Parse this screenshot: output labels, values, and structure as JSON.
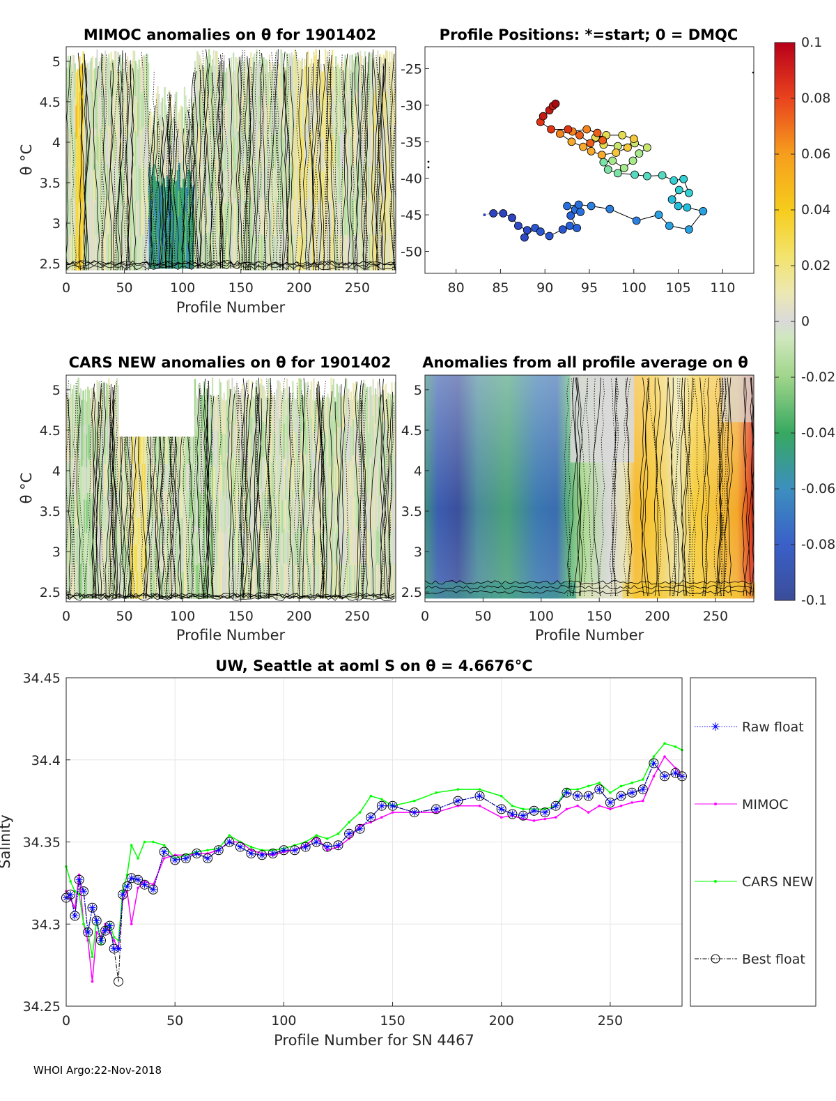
{
  "footer": "WHOI Argo:22-Nov-2018",
  "colorbar": {
    "ticks": [
      "0.1",
      "0.08",
      "0.06",
      "0.04",
      "0.02",
      "0",
      "-0.02",
      "-0.04",
      "-0.06",
      "-0.08",
      "-0.1"
    ],
    "range": [
      -0.1,
      0.1
    ]
  },
  "chart_data": [
    {
      "id": "mimoc_anom",
      "type": "heatmap",
      "title": "MIMOC anomalies on θ  for 1901402",
      "xlabel": "Profile Number",
      "ylabel": "θ °C",
      "xlim": [
        0,
        283
      ],
      "ylim": [
        2.38,
        5.18
      ],
      "xticks": [
        "0",
        "50",
        "100",
        "150",
        "200",
        "250"
      ],
      "yticks": [
        "5",
        "4.5",
        "4",
        "3.5",
        "3",
        "2.5"
      ],
      "value_range": [
        -0.1,
        0.1
      ]
    },
    {
      "id": "positions",
      "type": "scatter",
      "title": "Profile Positions: *=start; 0 = DMQC",
      "xlim": [
        76.5,
        113.5
      ],
      "ylim": [
        -53,
        -22
      ],
      "xticks": [
        "80",
        "85",
        "90",
        "95",
        "100",
        "105",
        "110"
      ],
      "yticks": [
        "-25",
        "-30",
        "-35",
        "-40",
        "-45",
        "-50"
      ],
      "track": [
        [
          83.2,
          -45
        ],
        [
          84.2,
          -44.8
        ],
        [
          85.3,
          -44.8
        ],
        [
          86.3,
          -45.4
        ],
        [
          87,
          -46.5
        ],
        [
          88,
          -47.1
        ],
        [
          87.7,
          -48.1
        ],
        [
          88.9,
          -46.8
        ],
        [
          89.5,
          -47.3
        ],
        [
          90.5,
          -47.9
        ],
        [
          92,
          -47
        ],
        [
          92.8,
          -46.5
        ],
        [
          93.6,
          -46.8
        ],
        [
          92.9,
          -45.1
        ],
        [
          93.4,
          -44.3
        ],
        [
          94,
          -44.6
        ],
        [
          92.5,
          -43.8
        ],
        [
          93.8,
          -43.6
        ],
        [
          95.2,
          -43.8
        ],
        [
          97.3,
          -44.2
        ],
        [
          100.3,
          -45.8
        ],
        [
          102.8,
          -45
        ],
        [
          104,
          -46.5
        ],
        [
          106.2,
          -47
        ],
        [
          107.8,
          -44.5
        ],
        [
          106,
          -44
        ],
        [
          105,
          -43.8
        ],
        [
          104.3,
          -42.9
        ],
        [
          105.1,
          -41.6
        ],
        [
          106.2,
          -42
        ],
        [
          105.6,
          -40.1
        ],
        [
          104.5,
          -40.3
        ],
        [
          103.2,
          -39.6
        ],
        [
          101.5,
          -39.7
        ],
        [
          100.1,
          -39.5
        ],
        [
          98.2,
          -39.3
        ],
        [
          97.1,
          -38.8
        ],
        [
          96.6,
          -37.8
        ],
        [
          97.6,
          -37.6
        ],
        [
          98.9,
          -38.6
        ],
        [
          99.9,
          -37.6
        ],
        [
          100.6,
          -36.6
        ],
        [
          101.5,
          -35.8
        ],
        [
          100.1,
          -35.2
        ],
        [
          98.2,
          -35.6
        ],
        [
          96.6,
          -35.4
        ],
        [
          95.7,
          -34.4
        ],
        [
          96.9,
          -34.1
        ],
        [
          98.7,
          -34.1
        ],
        [
          100,
          -34.6
        ],
        [
          99.3,
          -35.8
        ],
        [
          98,
          -36.5
        ],
        [
          96.4,
          -36.8
        ],
        [
          95.2,
          -36.3
        ],
        [
          94.3,
          -35.7
        ],
        [
          93,
          -35
        ],
        [
          91.7,
          -33.9
        ],
        [
          93.1,
          -33.6
        ],
        [
          94.7,
          -33.3
        ],
        [
          95.9,
          -33.8
        ],
        [
          96.5,
          -34.8
        ],
        [
          95.1,
          -35.2
        ],
        [
          93.9,
          -34.1
        ],
        [
          92.6,
          -33.3
        ],
        [
          90.7,
          -33.3
        ],
        [
          89.5,
          -32.3
        ],
        [
          89.8,
          -31.5
        ],
        [
          90.5,
          -30.7
        ],
        [
          90.9,
          -30.1
        ],
        [
          91.2,
          -29.8
        ]
      ],
      "colors": [
        "#2e43c0",
        "#2e4ac8",
        "#2a57d0",
        "#2862d8",
        "#2a70dc",
        "#2c80e0",
        "#2aa0e0",
        "#22bedc",
        "#33cfd2",
        "#55dac0",
        "#7be3a6",
        "#a7e88a",
        "#cae66f",
        "#e6dc52",
        "#f3c63d",
        "#f7a92b",
        "#f5841f",
        "#ee5d17",
        "#e03414",
        "#c31a14",
        "#a60b12"
      ]
    },
    {
      "id": "cars_anom",
      "type": "heatmap",
      "title": "CARS NEW anomalies on θ for 1901402",
      "xlabel": "Profile Number",
      "ylabel": "θ °C",
      "xlim": [
        0,
        283
      ],
      "ylim": [
        2.38,
        5.18
      ],
      "xticks": [
        "0",
        "50",
        "100",
        "150",
        "200",
        "250"
      ],
      "yticks": [
        "5",
        "4.5",
        "4",
        "3.5",
        "3",
        "2.5"
      ],
      "value_range": [
        -0.1,
        0.1
      ]
    },
    {
      "id": "avg_anom",
      "type": "heatmap",
      "title": "Anomalies from all profile average on θ",
      "xlabel": "Profile Number",
      "xlim": [
        0,
        283
      ],
      "ylim": [
        2.38,
        5.18
      ],
      "xticks": [
        "0",
        "50",
        "100",
        "150",
        "200",
        "250"
      ],
      "yticks": [
        "5",
        "4.5",
        "4",
        "3.5",
        "3",
        "2.5"
      ],
      "value_range": [
        -0.1,
        0.1
      ]
    },
    {
      "id": "salinity",
      "type": "line",
      "title": "UW, Seattle at aoml S on θ = 4.6676°C",
      "xlabel": "Profile Number for SN 4467",
      "ylabel": "Salinity",
      "xlim": [
        0,
        283
      ],
      "ylim": [
        34.25,
        34.45
      ],
      "xticks": [
        "0",
        "50",
        "100",
        "150",
        "200",
        "250"
      ],
      "yticks": [
        "34.45",
        "34.4",
        "34.35",
        "34.3",
        "34.25"
      ],
      "grid": true,
      "legend_position": "right",
      "x": [
        0,
        2,
        4,
        6,
        8,
        10,
        12,
        14,
        16,
        18,
        20,
        22,
        24,
        26,
        28,
        30,
        33,
        36,
        40,
        45,
        50,
        55,
        60,
        65,
        70,
        75,
        80,
        85,
        90,
        95,
        100,
        105,
        110,
        115,
        120,
        125,
        130,
        135,
        140,
        145,
        150,
        160,
        170,
        180,
        190,
        200,
        205,
        210,
        215,
        220,
        225,
        230,
        235,
        240,
        245,
        250,
        255,
        260,
        265,
        270,
        275,
        280,
        283
      ],
      "series": [
        {
          "name": "Raw float",
          "color": "#0000ff",
          "values": [
            34.316,
            34.318,
            34.305,
            34.327,
            34.32,
            34.295,
            34.31,
            34.302,
            34.29,
            34.296,
            34.299,
            34.285,
            34.285,
            34.318,
            34.323,
            34.328,
            34.327,
            34.324,
            34.321,
            34.344,
            34.339,
            34.34,
            34.343,
            34.34,
            34.345,
            34.35,
            34.347,
            34.343,
            34.342,
            34.343,
            34.345,
            34.345,
            34.347,
            34.35,
            34.347,
            34.348,
            34.355,
            34.358,
            34.365,
            34.372,
            34.372,
            34.368,
            34.37,
            34.375,
            34.378,
            34.37,
            34.367,
            34.366,
            34.369,
            34.368,
            34.372,
            34.38,
            34.378,
            34.378,
            34.382,
            34.374,
            34.378,
            34.38,
            34.382,
            34.398,
            34.39,
            34.392,
            34.39
          ]
        },
        {
          "name": "MIMOC",
          "color": "#ff00ff",
          "values": [
            34.32,
            34.315,
            34.31,
            34.33,
            34.3,
            34.29,
            34.265,
            34.295,
            34.292,
            34.3,
            34.295,
            34.29,
            34.285,
            34.315,
            34.32,
            34.3,
            34.322,
            34.326,
            34.324,
            34.34,
            34.342,
            34.342,
            34.343,
            34.343,
            34.345,
            34.35,
            34.35,
            34.345,
            34.343,
            34.342,
            34.344,
            34.345,
            34.348,
            34.353,
            34.345,
            34.347,
            34.352,
            34.36,
            34.362,
            34.365,
            34.368,
            34.368,
            34.368,
            34.372,
            34.372,
            34.365,
            34.366,
            34.364,
            34.363,
            34.364,
            34.365,
            34.37,
            34.372,
            34.368,
            34.372,
            34.37,
            34.372,
            34.374,
            34.375,
            34.39,
            34.402,
            34.395,
            34.39
          ]
        },
        {
          "name": "CARS NEW",
          "color": "#00ff00",
          "values": [
            34.335,
            34.326,
            34.32,
            34.318,
            34.3,
            34.295,
            34.28,
            34.302,
            34.288,
            34.298,
            34.3,
            34.292,
            34.29,
            34.32,
            34.33,
            34.348,
            34.34,
            34.35,
            34.35,
            34.348,
            34.34,
            34.342,
            34.344,
            34.345,
            34.346,
            34.354,
            34.35,
            34.347,
            34.345,
            34.345,
            34.346,
            34.348,
            34.35,
            34.354,
            34.352,
            34.355,
            34.362,
            34.368,
            34.378,
            34.376,
            34.372,
            34.375,
            34.38,
            34.382,
            34.382,
            34.378,
            34.372,
            34.37,
            34.37,
            34.37,
            34.372,
            34.382,
            34.382,
            34.384,
            34.386,
            34.38,
            34.384,
            34.386,
            34.388,
            34.402,
            34.41,
            34.408,
            34.406
          ]
        },
        {
          "name": "Best float",
          "color": "#000000",
          "values": [
            34.316,
            34.318,
            34.305,
            34.327,
            34.32,
            34.295,
            34.31,
            34.302,
            34.29,
            34.296,
            34.299,
            34.285,
            34.265,
            34.318,
            34.323,
            34.328,
            34.327,
            34.324,
            34.321,
            34.344,
            34.339,
            34.34,
            34.343,
            34.34,
            34.345,
            34.35,
            34.347,
            34.343,
            34.342,
            34.343,
            34.345,
            34.345,
            34.347,
            34.35,
            34.347,
            34.348,
            34.355,
            34.358,
            34.365,
            34.372,
            34.372,
            34.368,
            34.37,
            34.375,
            34.378,
            34.37,
            34.367,
            34.366,
            34.369,
            34.368,
            34.372,
            34.38,
            34.378,
            34.378,
            34.382,
            34.374,
            34.378,
            34.38,
            34.382,
            34.398,
            34.39,
            34.392,
            34.39
          ]
        }
      ]
    }
  ]
}
